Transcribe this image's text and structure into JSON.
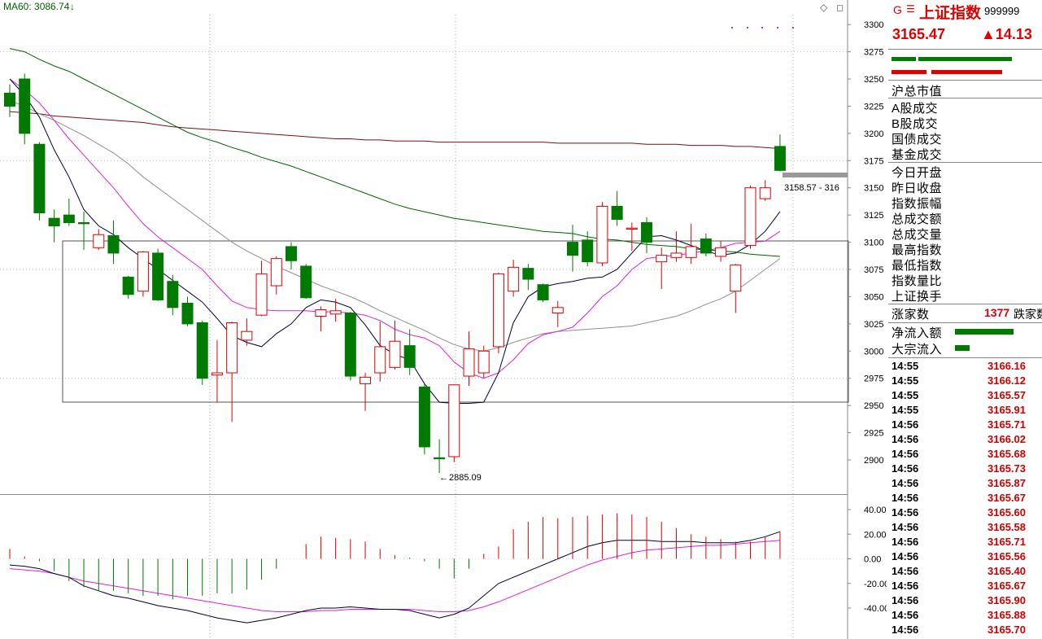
{
  "ma_label": "MA60: 3086.74",
  "ma_arrow": "↓",
  "corner_icon": "diamond-icon",
  "range_label": "3158.57 - 316",
  "low_label": "2885.09",
  "header": {
    "g": "G",
    "menu": "☰",
    "name": "上证指数",
    "code": "999999",
    "price": "3165.47",
    "change": "▲14.13"
  },
  "labels": {
    "market_value": "沪总市值",
    "a_share": "A股成交",
    "b_share": "B股成交",
    "bond": "国债成交",
    "fund": "基金成交",
    "open": "今日开盘",
    "prev_close": "昨日收盘",
    "amplitude": "指数振幅",
    "turnover": "总成交额",
    "volume": "总成交量",
    "high": "最高指数",
    "low": "最低指数",
    "volume_ratio": "指数量比",
    "turnover_rate": "上证换手",
    "up_count_label": "涨家数",
    "up_count_value": "1377",
    "down_count_label": "跌家数",
    "net_inflow": "净流入额",
    "block_inflow": "大宗流入"
  },
  "ticks": [
    {
      "time": "14:55",
      "price": "3166.16"
    },
    {
      "time": "14:55",
      "price": "3166.12"
    },
    {
      "time": "14:55",
      "price": "3165.57"
    },
    {
      "time": "14:55",
      "price": "3165.91"
    },
    {
      "time": "14:56",
      "price": "3165.71"
    },
    {
      "time": "14:56",
      "price": "3166.02"
    },
    {
      "time": "14:56",
      "price": "3165.68"
    },
    {
      "time": "14:56",
      "price": "3165.73"
    },
    {
      "time": "14:56",
      "price": "3165.87"
    },
    {
      "time": "14:56",
      "price": "3165.67"
    },
    {
      "time": "14:56",
      "price": "3165.60"
    },
    {
      "time": "14:56",
      "price": "3165.58"
    },
    {
      "time": "14:56",
      "price": "3165.71"
    },
    {
      "time": "14:56",
      "price": "3165.56"
    },
    {
      "time": "14:56",
      "price": "3165.40"
    },
    {
      "time": "14:56",
      "price": "3165.67"
    },
    {
      "time": "14:56",
      "price": "3165.90"
    },
    {
      "time": "14:56",
      "price": "3165.88"
    },
    {
      "time": "14:56",
      "price": "3165.70"
    }
  ],
  "colors": {
    "up": "#e00000",
    "down": "#007a00",
    "ma5": "#000033",
    "ma10": "#e020e0",
    "ma20": "#909090",
    "ma60": "#006400",
    "ma250": "#7a1010"
  },
  "chart_data": {
    "type": "candlestick",
    "y_ticks": [
      3300,
      3275,
      3250,
      3225,
      3200,
      3175,
      3150,
      3125,
      3100,
      3075,
      3050,
      3025,
      3000,
      2975,
      2950,
      2925,
      2900
    ],
    "ylim": [
      2880,
      3305
    ],
    "candles": [
      {
        "o": 3237,
        "h": 3245,
        "l": 3215,
        "c": 3225
      },
      {
        "o": 3250,
        "h": 3255,
        "l": 3190,
        "c": 3200
      },
      {
        "o": 3190,
        "h": 3192,
        "l": 3120,
        "c": 3127
      },
      {
        "o": 3122,
        "h": 3130,
        "l": 3100,
        "c": 3115
      },
      {
        "o": 3125,
        "h": 3140,
        "l": 3115,
        "c": 3118
      },
      {
        "o": 3118,
        "h": 3128,
        "l": 3093,
        "c": 3117
      },
      {
        "o": 3095,
        "h": 3112,
        "l": 3093,
        "c": 3107
      },
      {
        "o": 3106,
        "h": 3120,
        "l": 3080,
        "c": 3090
      },
      {
        "o": 3068,
        "h": 3069,
        "l": 3048,
        "c": 3052
      },
      {
        "o": 3055,
        "h": 3092,
        "l": 3050,
        "c": 3091
      },
      {
        "o": 3090,
        "h": 3094,
        "l": 3046,
        "c": 3047
      },
      {
        "o": 3064,
        "h": 3070,
        "l": 3033,
        "c": 3040
      },
      {
        "o": 3044,
        "h": 3050,
        "l": 3023,
        "c": 3025
      },
      {
        "o": 3026,
        "h": 3028,
        "l": 2969,
        "c": 2975
      },
      {
        "o": 2978,
        "h": 3010,
        "l": 2953,
        "c": 2980
      },
      {
        "o": 2980,
        "h": 3027,
        "l": 2935,
        "c": 3026
      },
      {
        "o": 3010,
        "h": 3030,
        "l": 3005,
        "c": 3018
      },
      {
        "o": 3033,
        "h": 3083,
        "l": 3032,
        "c": 3071
      },
      {
        "o": 3060,
        "h": 3087,
        "l": 3052,
        "c": 3085
      },
      {
        "o": 3096,
        "h": 3100,
        "l": 3075,
        "c": 3083
      },
      {
        "o": 3078,
        "h": 3080,
        "l": 3048,
        "c": 3049
      },
      {
        "o": 3032,
        "h": 3041,
        "l": 3018,
        "c": 3038
      },
      {
        "o": 3034,
        "h": 3048,
        "l": 3027,
        "c": 3037
      },
      {
        "o": 3035,
        "h": 3036,
        "l": 2973,
        "c": 2977
      },
      {
        "o": 2970,
        "h": 2980,
        "l": 2945,
        "c": 2976
      },
      {
        "o": 2980,
        "h": 3027,
        "l": 2972,
        "c": 3004
      },
      {
        "o": 2985,
        "h": 3028,
        "l": 2983,
        "c": 3009
      },
      {
        "o": 3005,
        "h": 3020,
        "l": 2978,
        "c": 2985
      },
      {
        "o": 2967,
        "h": 2970,
        "l": 2905,
        "c": 2912
      },
      {
        "o": 2902,
        "h": 2919,
        "l": 2888,
        "c": 2901
      },
      {
        "o": 2903,
        "h": 2968,
        "l": 2898,
        "c": 2969
      },
      {
        "o": 2977,
        "h": 3018,
        "l": 2968,
        "c": 3002
      },
      {
        "o": 2980,
        "h": 3005,
        "l": 2975,
        "c": 3000
      },
      {
        "o": 3004,
        "h": 3072,
        "l": 2998,
        "c": 3071
      },
      {
        "o": 3055,
        "h": 3084,
        "l": 3050,
        "c": 3077
      },
      {
        "o": 3076,
        "h": 3080,
        "l": 3056,
        "c": 3066
      },
      {
        "o": 3061,
        "h": 3062,
        "l": 3045,
        "c": 3047
      },
      {
        "o": 3035,
        "h": 3046,
        "l": 3022,
        "c": 3040
      },
      {
        "o": 3100,
        "h": 3116,
        "l": 3073,
        "c": 3088
      },
      {
        "o": 3102,
        "h": 3110,
        "l": 3078,
        "c": 3082
      },
      {
        "o": 3081,
        "h": 3137,
        "l": 3078,
        "c": 3133
      },
      {
        "o": 3133,
        "h": 3147,
        "l": 3115,
        "c": 3121
      },
      {
        "o": 3112,
        "h": 3118,
        "l": 3092,
        "c": 3113
      },
      {
        "o": 3118,
        "h": 3123,
        "l": 3090,
        "c": 3100
      },
      {
        "o": 3082,
        "h": 3095,
        "l": 3057,
        "c": 3088
      },
      {
        "o": 3086,
        "h": 3110,
        "l": 3082,
        "c": 3090
      },
      {
        "o": 3086,
        "h": 3117,
        "l": 3080,
        "c": 3096
      },
      {
        "o": 3103,
        "h": 3108,
        "l": 3087,
        "c": 3090
      },
      {
        "o": 3087,
        "h": 3101,
        "l": 3082,
        "c": 3095
      },
      {
        "o": 3055,
        "h": 3080,
        "l": 3035,
        "c": 3079
      },
      {
        "o": 3097,
        "h": 3152,
        "l": 3094,
        "c": 3150
      },
      {
        "o": 3140,
        "h": 3157,
        "l": 3138,
        "c": 3150
      },
      {
        "o": 3188,
        "h": 3199,
        "l": 3165,
        "c": 3166
      }
    ],
    "ma5": [
      3250,
      3235,
      3215,
      3185,
      3160,
      3130,
      3115,
      3107,
      3095,
      3085,
      3075,
      3065,
      3055,
      3045,
      3030,
      3014,
      3008,
      3004,
      3016,
      3025,
      3040,
      3047,
      3045,
      3040,
      3024,
      3005,
      2997,
      2992,
      2970,
      2953,
      2952,
      2952,
      2953,
      2980,
      3026,
      3050,
      3059,
      3062,
      3064,
      3067,
      3068,
      3075,
      3090,
      3105,
      3106,
      3102,
      3097,
      3092,
      3088,
      3090,
      3098,
      3110,
      3128
    ],
    "ma10": [
      3250,
      3240,
      3228,
      3212,
      3195,
      3180,
      3165,
      3150,
      3133,
      3117,
      3105,
      3095,
      3085,
      3075,
      3060,
      3046,
      3040,
      3038,
      3037,
      3037,
      3037,
      3036,
      3036,
      3035,
      3033,
      3028,
      3020,
      3015,
      3012,
      3005,
      2990,
      2980,
      2975,
      2980,
      2992,
      3007,
      3015,
      3018,
      3022,
      3035,
      3050,
      3060,
      3075,
      3085,
      3087,
      3088,
      3090,
      3092,
      3095,
      3099,
      3100,
      3101,
      3110
    ],
    "ma20": [
      3230,
      3225,
      3218,
      3212,
      3205,
      3198,
      3190,
      3182,
      3172,
      3160,
      3150,
      3140,
      3130,
      3120,
      3110,
      3100,
      3092,
      3085,
      3078,
      3072,
      3066,
      3060,
      3055,
      3050,
      3044,
      3037,
      3031,
      3025,
      3019,
      3012,
      3006,
      3002,
      3000,
      3003,
      3008,
      3012,
      3016,
      3018,
      3019,
      3020,
      3021,
      3022,
      3023,
      3026,
      3029,
      3032,
      3037,
      3043,
      3048,
      3055,
      3065,
      3075,
      3085
    ],
    "ma60": [
      3278,
      3275,
      3268,
      3262,
      3257,
      3250,
      3243,
      3236,
      3229,
      3222,
      3215,
      3208,
      3201,
      3196,
      3192,
      3187,
      3183,
      3178,
      3174,
      3170,
      3165,
      3160,
      3155,
      3150,
      3145,
      3140,
      3135,
      3131,
      3128,
      3125,
      3122,
      3120,
      3118,
      3116,
      3114,
      3112,
      3110,
      3109,
      3108,
      3105,
      3103,
      3102,
      3100,
      3098,
      3097,
      3096,
      3094,
      3093,
      3092,
      3091,
      3089,
      3088,
      3087
    ],
    "ma250": [
      3220,
      3219,
      3218,
      3216,
      3215,
      3214,
      3213,
      3212,
      3211,
      3210,
      3208,
      3206,
      3205,
      3204,
      3203,
      3202,
      3201,
      3200,
      3199,
      3198,
      3197,
      3196,
      3195,
      3195,
      3194,
      3194,
      3193,
      3193,
      3193,
      3192,
      3192,
      3192,
      3192,
      3192,
      3192,
      3192,
      3192,
      3191,
      3191,
      3191,
      3191,
      3191,
      3191,
      3190,
      3190,
      3190,
      3189,
      3189,
      3189,
      3188,
      3188,
      3187,
      3186
    ],
    "macd_ticks": [
      40,
      20,
      0,
      -20,
      -40
    ],
    "macd_ylim": [
      -52,
      48
    ],
    "macd_hist": [
      8,
      2,
      -2,
      -10,
      -18,
      -23,
      -26,
      -26,
      -28,
      -30,
      -30,
      -33,
      -30,
      -30,
      -28,
      -28,
      -25,
      -17,
      -8,
      0,
      12,
      18,
      17,
      16,
      14,
      8,
      3,
      1,
      -2,
      -8,
      -16,
      -8,
      4,
      10,
      24,
      30,
      34,
      33,
      34,
      35,
      36,
      37,
      36,
      34,
      30,
      25,
      20,
      18,
      16,
      14,
      14,
      18,
      22
    ],
    "macd_dif": [
      -5,
      -6,
      -8,
      -12,
      -15,
      -22,
      -26,
      -30,
      -32,
      -35,
      -38,
      -40,
      -42,
      -45,
      -48,
      -50,
      -52,
      -50,
      -48,
      -45,
      -42,
      -40,
      -40,
      -39,
      -40,
      -41,
      -41,
      -42,
      -45,
      -48,
      -45,
      -40,
      -30,
      -20,
      -15,
      -10,
      -5,
      0,
      5,
      10,
      13,
      15,
      15,
      15,
      14,
      14,
      14,
      13,
      13,
      13,
      15,
      18,
      22
    ],
    "macd_dea": [
      -8,
      -9,
      -10,
      -12,
      -15,
      -18,
      -20,
      -22,
      -24,
      -26,
      -28,
      -30,
      -32,
      -34,
      -36,
      -38,
      -40,
      -42,
      -43,
      -43,
      -43,
      -42,
      -42,
      -41,
      -41,
      -41,
      -41,
      -41,
      -42,
      -43,
      -43,
      -42,
      -39,
      -35,
      -30,
      -25,
      -20,
      -15,
      -10,
      -5,
      -1,
      2,
      5,
      7,
      8,
      9,
      10,
      11,
      11,
      12,
      13,
      14,
      15
    ]
  }
}
